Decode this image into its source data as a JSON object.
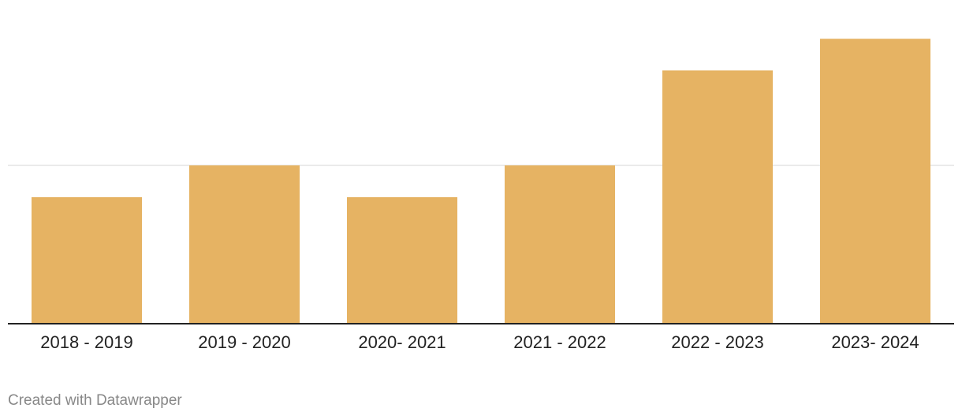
{
  "chart_data": {
    "type": "bar",
    "categories": [
      "2018 - 2019",
      "2019 - 2020",
      "2020- 2021",
      "2021 - 2022",
      "2022 - 2023",
      "2023- 2024"
    ],
    "values": [
      8,
      10,
      8,
      10,
      16,
      18
    ],
    "color": "#e6b363",
    "ylim": [
      0,
      20
    ],
    "yticks": [
      0,
      10
    ],
    "grid": true
  },
  "footer": "Created with Datawrapper"
}
